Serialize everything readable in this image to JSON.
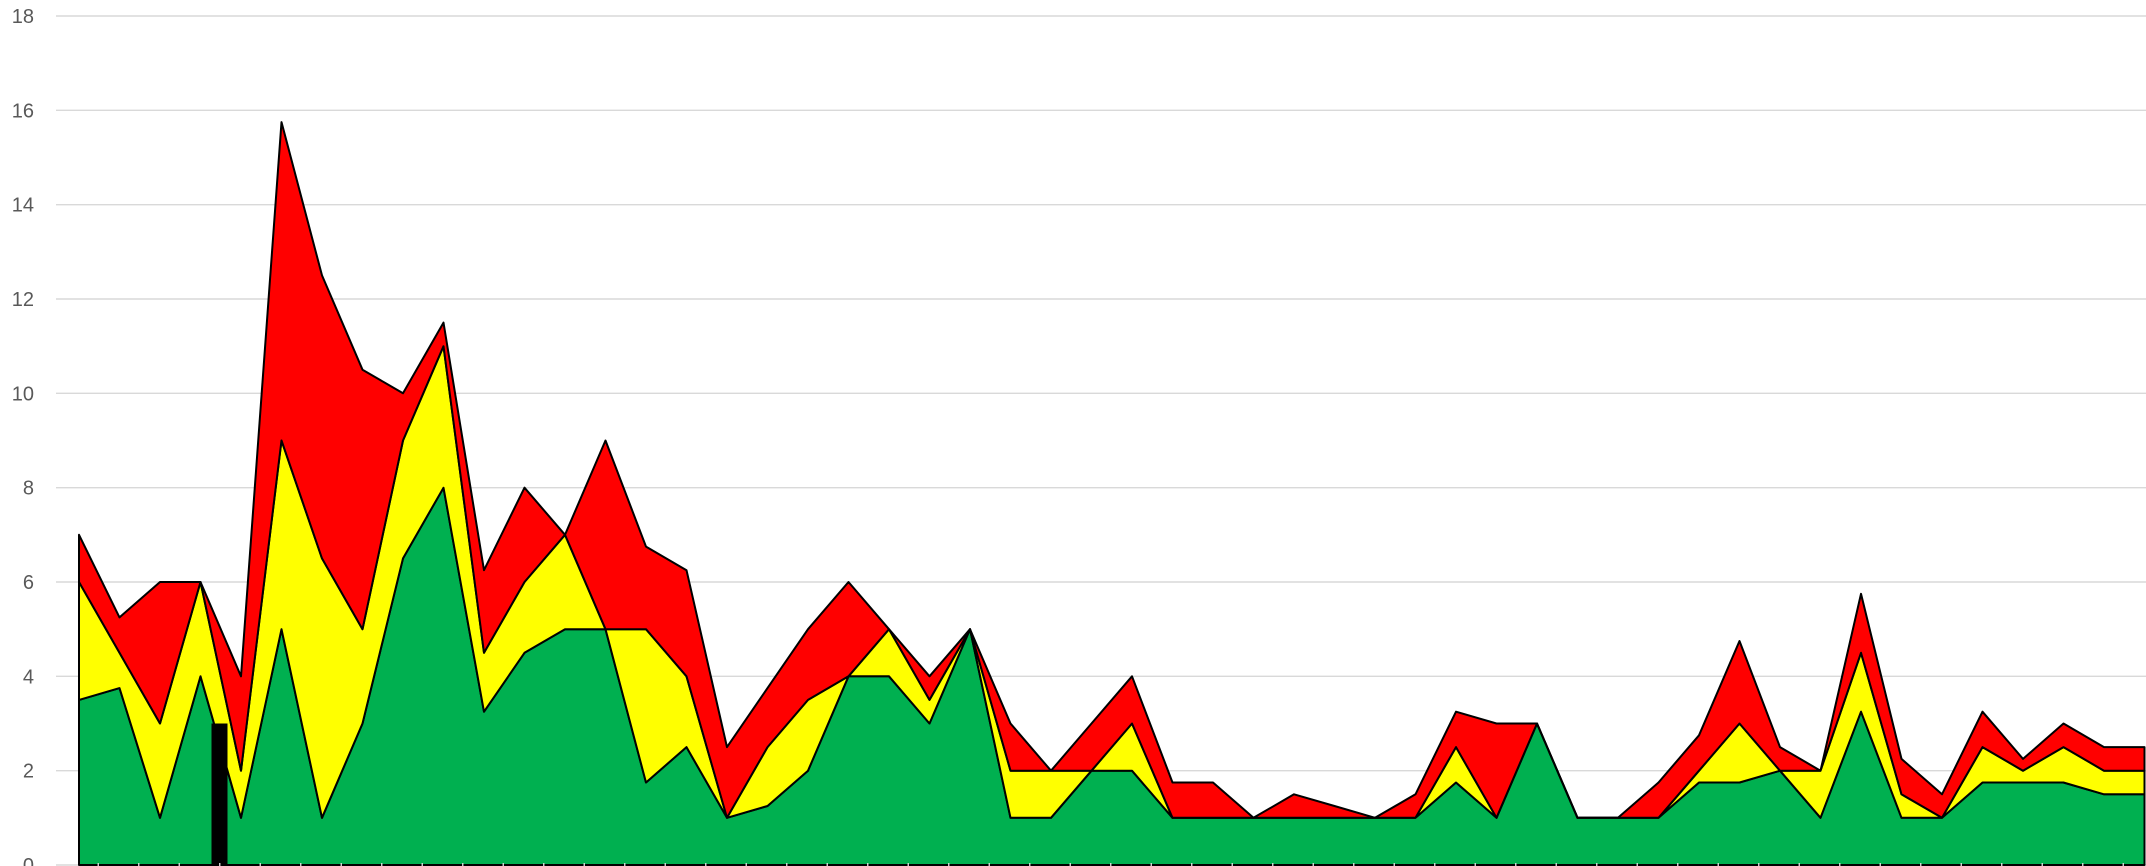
{
  "chart_data": {
    "type": "area",
    "stacked": true,
    "title": "",
    "xlabel": "",
    "ylabel": "",
    "ylim": [
      0,
      18
    ],
    "yticks": [
      0,
      2,
      4,
      6,
      8,
      10,
      12,
      14,
      16,
      18
    ],
    "grid": true,
    "legend": "none",
    "x": [
      1,
      2,
      3,
      4,
      5,
      6,
      7,
      8,
      9,
      10,
      11,
      12,
      13,
      14,
      15,
      16,
      17,
      18,
      19,
      20,
      21,
      22,
      23,
      24,
      25,
      26,
      27,
      28,
      29,
      30,
      31,
      32,
      33,
      34,
      35,
      36,
      37,
      38,
      39,
      40,
      41,
      42,
      43,
      44,
      45,
      46,
      47,
      48,
      49,
      50,
      51,
      52
    ],
    "series": [
      {
        "color": "#00b050",
        "values": [
          3.5,
          3.75,
          1,
          4,
          1,
          5,
          1,
          3,
          6.5,
          8,
          3.25,
          4.5,
          5,
          5,
          1.75,
          2.5,
          1,
          1.25,
          2,
          4,
          4,
          3,
          5,
          1,
          1,
          2,
          2,
          1,
          1,
          1,
          1,
          1,
          1,
          1,
          1.75,
          1,
          3,
          1,
          1,
          1,
          1.75,
          1.75,
          2,
          1,
          3.25,
          1,
          1,
          1.75,
          1.75,
          1.75,
          1.5,
          1.5
        ]
      },
      {
        "color": "#ffff00",
        "values": [
          2.5,
          0.75,
          2,
          2,
          1,
          4,
          5.5,
          2,
          2.5,
          3,
          1.25,
          1.5,
          2,
          0,
          3.25,
          1.5,
          0,
          1.25,
          1.5,
          0,
          1,
          0.5,
          0,
          1,
          1,
          0,
          1,
          0,
          0,
          0,
          0,
          0,
          0,
          0,
          0.75,
          0,
          0,
          0,
          0,
          0,
          0.25,
          1.25,
          0,
          1,
          1.25,
          0.5,
          0,
          0.75,
          0.25,
          0.75,
          0.5,
          0.5
        ]
      },
      {
        "color": "#ff0000",
        "values": [
          1,
          0.75,
          3,
          0,
          2,
          6.75,
          6,
          5.5,
          1,
          0.5,
          1.75,
          2,
          0,
          4,
          1.75,
          2.25,
          1.5,
          1.25,
          1.5,
          2,
          0,
          0.5,
          0,
          1,
          0,
          1,
          1,
          0.75,
          0.75,
          0,
          0.5,
          0.25,
          0,
          0.5,
          0.75,
          2,
          0,
          0,
          0,
          0.75,
          0.75,
          1.75,
          0.5,
          0,
          1.25,
          0.75,
          0.5,
          0.75,
          0.25,
          0.5,
          0.5,
          0.5
        ]
      }
    ],
    "bars": [
      {
        "x": 4,
        "value": 3,
        "color": "#000000"
      }
    ]
  }
}
